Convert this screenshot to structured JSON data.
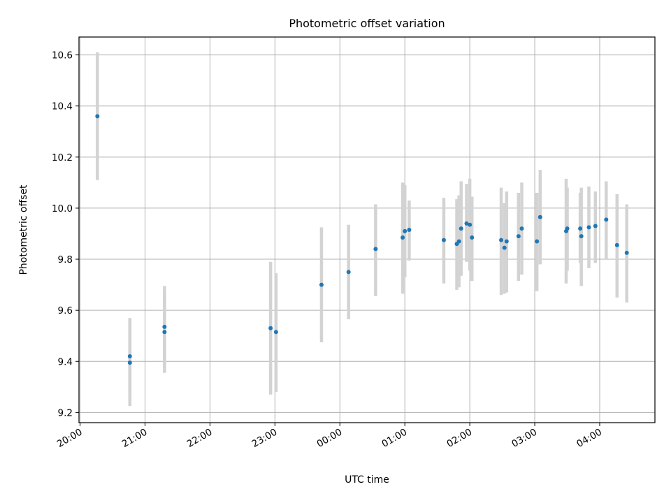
{
  "chart_data": {
    "type": "scatter",
    "title": "Photometric offset variation",
    "xlabel": "UTC time",
    "ylabel": "Photometric offset",
    "x_axis_kind": "time",
    "x_start": "20:00",
    "x_ticks": [
      "20:00",
      "21:00",
      "22:00",
      "23:00",
      "00:00",
      "01:00",
      "02:00",
      "03:00",
      "04:00"
    ],
    "y_ticks": [
      9.2,
      9.4,
      9.6,
      9.8,
      10.0,
      10.2,
      10.4,
      10.6
    ],
    "xlim": [
      "19:59",
      "04:51"
    ],
    "ylim": [
      9.16,
      10.67
    ],
    "grid": true,
    "colors": {
      "point": "#1f77b4",
      "errorbar": "#d3d3d3",
      "grid": "#b0b0b0"
    },
    "series": [
      {
        "points": [
          {
            "x": "20:16",
            "y": 10.36,
            "lo": 10.11,
            "hi": 10.61
          },
          {
            "x": "20:46",
            "y": 9.42,
            "lo": 9.26,
            "hi": 9.57
          },
          {
            "x": "20:46",
            "y": 9.395,
            "lo": 9.225,
            "hi": 9.565
          },
          {
            "x": "21:18",
            "y": 9.535,
            "lo": 9.375,
            "hi": 9.695
          },
          {
            "x": "21:18",
            "y": 9.515,
            "lo": 9.355,
            "hi": 9.675
          },
          {
            "x": "22:56",
            "y": 9.53,
            "lo": 9.27,
            "hi": 9.79
          },
          {
            "x": "23:01",
            "y": 9.515,
            "lo": 9.28,
            "hi": 9.745
          },
          {
            "x": "23:43",
            "y": 9.7,
            "lo": 9.475,
            "hi": 9.925
          },
          {
            "x": "00:08",
            "y": 9.75,
            "lo": 9.565,
            "hi": 9.935
          },
          {
            "x": "00:33",
            "y": 9.84,
            "lo": 9.655,
            "hi": 10.015
          },
          {
            "x": "00:58",
            "y": 9.885,
            "lo": 9.665,
            "hi": 10.1
          },
          {
            "x": "01:00",
            "y": 9.91,
            "lo": 9.73,
            "hi": 10.09
          },
          {
            "x": "01:04",
            "y": 9.915,
            "lo": 9.795,
            "hi": 10.03
          },
          {
            "x": "01:36",
            "y": 9.875,
            "lo": 9.705,
            "hi": 10.04
          },
          {
            "x": "01:48",
            "y": 9.86,
            "lo": 9.68,
            "hi": 10.035
          },
          {
            "x": "01:50",
            "y": 9.87,
            "lo": 9.69,
            "hi": 10.05
          },
          {
            "x": "01:52",
            "y": 9.92,
            "lo": 9.735,
            "hi": 10.105
          },
          {
            "x": "01:57",
            "y": 9.94,
            "lo": 9.79,
            "hi": 10.095
          },
          {
            "x": "02:00",
            "y": 9.935,
            "lo": 9.755,
            "hi": 10.115
          },
          {
            "x": "02:02",
            "y": 9.885,
            "lo": 9.715,
            "hi": 10.045
          },
          {
            "x": "02:29",
            "y": 9.875,
            "lo": 9.66,
            "hi": 10.08
          },
          {
            "x": "02:32",
            "y": 9.845,
            "lo": 9.665,
            "hi": 10.02
          },
          {
            "x": "02:34",
            "y": 9.87,
            "lo": 9.67,
            "hi": 10.065
          },
          {
            "x": "02:45",
            "y": 9.89,
            "lo": 9.715,
            "hi": 10.06
          },
          {
            "x": "02:48",
            "y": 9.92,
            "lo": 9.74,
            "hi": 10.1
          },
          {
            "x": "03:02",
            "y": 9.87,
            "lo": 9.675,
            "hi": 10.06
          },
          {
            "x": "03:05",
            "y": 9.965,
            "lo": 9.78,
            "hi": 10.15
          },
          {
            "x": "03:29",
            "y": 9.91,
            "lo": 9.705,
            "hi": 10.115
          },
          {
            "x": "03:30",
            "y": 9.92,
            "lo": 9.755,
            "hi": 10.08
          },
          {
            "x": "03:42",
            "y": 9.92,
            "lo": 9.785,
            "hi": 10.06
          },
          {
            "x": "03:43",
            "y": 9.89,
            "lo": 9.695,
            "hi": 10.08
          },
          {
            "x": "03:50",
            "y": 9.925,
            "lo": 9.765,
            "hi": 10.085
          },
          {
            "x": "03:56",
            "y": 9.93,
            "lo": 9.785,
            "hi": 10.065
          },
          {
            "x": "04:06",
            "y": 9.955,
            "lo": 9.8,
            "hi": 10.105
          },
          {
            "x": "04:16",
            "y": 9.855,
            "lo": 9.65,
            "hi": 10.055
          },
          {
            "x": "04:25",
            "y": 9.825,
            "lo": 9.63,
            "hi": 10.015
          }
        ]
      }
    ]
  }
}
